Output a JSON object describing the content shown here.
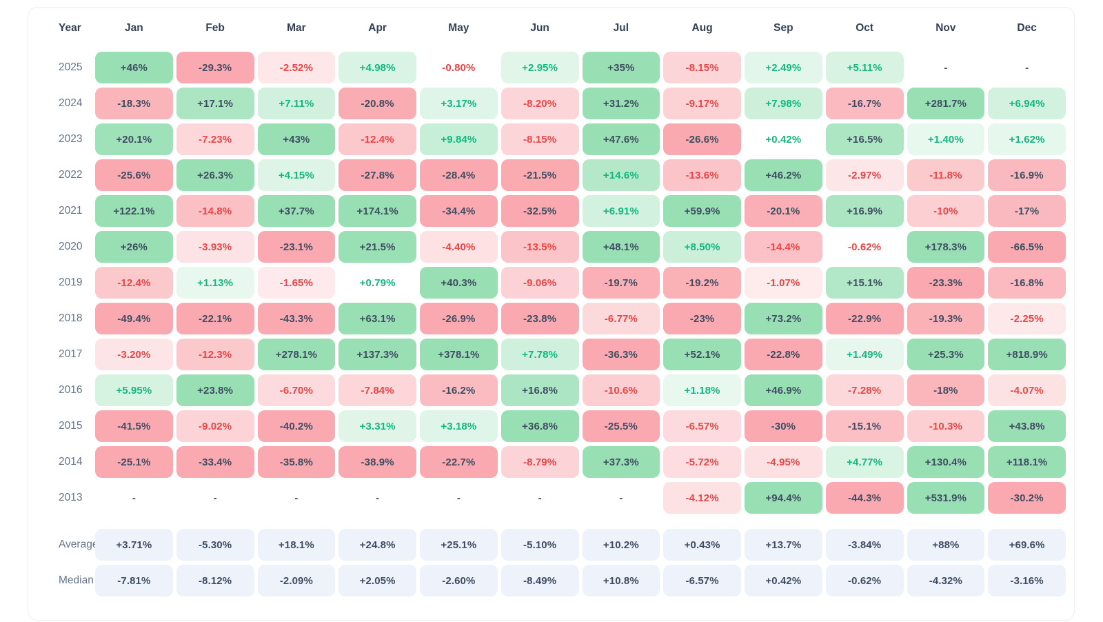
{
  "chart_data": {
    "type": "heatmap",
    "description": "Monthly percentage returns by year with average and median summary rows",
    "columns": [
      "Year",
      "Jan",
      "Feb",
      "Mar",
      "Apr",
      "May",
      "Jun",
      "Jul",
      "Aug",
      "Sep",
      "Oct",
      "Nov",
      "Dec"
    ],
    "empty_placeholder": "-",
    "rows": [
      {
        "label": "2025",
        "values": [
          "+46%",
          "-29.3%",
          "-2.52%",
          "+4.98%",
          "-0.80%",
          "+2.95%",
          "+35%",
          "-8.15%",
          "+2.49%",
          "+5.11%",
          "-",
          "-"
        ]
      },
      {
        "label": "2024",
        "values": [
          "-18.3%",
          "+17.1%",
          "+7.11%",
          "-20.8%",
          "+3.17%",
          "-8.20%",
          "+31.2%",
          "-9.17%",
          "+7.98%",
          "-16.7%",
          "+281.7%",
          "+6.94%"
        ]
      },
      {
        "label": "2023",
        "values": [
          "+20.1%",
          "-7.23%",
          "+43%",
          "-12.4%",
          "+9.84%",
          "-8.15%",
          "+47.6%",
          "-26.6%",
          "+0.42%",
          "+16.5%",
          "+1.40%",
          "+1.62%"
        ]
      },
      {
        "label": "2022",
        "values": [
          "-25.6%",
          "+26.3%",
          "+4.15%",
          "-27.8%",
          "-28.4%",
          "-21.5%",
          "+14.6%",
          "-13.6%",
          "+46.2%",
          "-2.97%",
          "-11.8%",
          "-16.9%"
        ]
      },
      {
        "label": "2021",
        "values": [
          "+122.1%",
          "-14.8%",
          "+37.7%",
          "+174.1%",
          "-34.4%",
          "-32.5%",
          "+6.91%",
          "+59.9%",
          "-20.1%",
          "+16.9%",
          "-10%",
          "-17%"
        ]
      },
      {
        "label": "2020",
        "values": [
          "+26%",
          "-3.93%",
          "-23.1%",
          "+21.5%",
          "-4.40%",
          "-13.5%",
          "+48.1%",
          "+8.50%",
          "-14.4%",
          "-0.62%",
          "+178.3%",
          "-66.5%"
        ]
      },
      {
        "label": "2019",
        "values": [
          "-12.4%",
          "+1.13%",
          "-1.65%",
          "+0.79%",
          "+40.3%",
          "-9.06%",
          "-19.7%",
          "-19.2%",
          "-1.07%",
          "+15.1%",
          "-23.3%",
          "-16.8%"
        ]
      },
      {
        "label": "2018",
        "values": [
          "-49.4%",
          "-22.1%",
          "-43.3%",
          "+63.1%",
          "-26.9%",
          "-23.8%",
          "-6.77%",
          "-23%",
          "+73.2%",
          "-22.9%",
          "-19.3%",
          "-2.25%"
        ]
      },
      {
        "label": "2017",
        "values": [
          "-3.20%",
          "-12.3%",
          "+278.1%",
          "+137.3%",
          "+378.1%",
          "+7.78%",
          "-36.3%",
          "+52.1%",
          "-22.8%",
          "+1.49%",
          "+25.3%",
          "+818.9%"
        ]
      },
      {
        "label": "2016",
        "values": [
          "+5.95%",
          "+23.8%",
          "-6.70%",
          "-7.84%",
          "-16.2%",
          "+16.8%",
          "-10.6%",
          "+1.18%",
          "+46.9%",
          "-7.28%",
          "-18%",
          "-4.07%"
        ]
      },
      {
        "label": "2015",
        "values": [
          "-41.5%",
          "-9.02%",
          "-40.2%",
          "+3.31%",
          "+3.18%",
          "+36.8%",
          "-25.5%",
          "-6.57%",
          "-30%",
          "-15.1%",
          "-10.3%",
          "+43.8%"
        ]
      },
      {
        "label": "2014",
        "values": [
          "-25.1%",
          "-33.4%",
          "-35.8%",
          "-38.9%",
          "-22.7%",
          "-8.79%",
          "+37.3%",
          "-5.72%",
          "-4.95%",
          "+4.77%",
          "+130.4%",
          "+118.1%"
        ]
      },
      {
        "label": "2013",
        "values": [
          "-",
          "-",
          "-",
          "-",
          "-",
          "-",
          "-",
          "-4.12%",
          "+94.4%",
          "-44.3%",
          "+531.9%",
          "-30.2%"
        ]
      }
    ],
    "summary_rows": [
      {
        "label": "Average",
        "values": [
          "+3.71%",
          "-5.30%",
          "+18.1%",
          "+24.8%",
          "+25.1%",
          "-5.10%",
          "+10.2%",
          "+0.43%",
          "+13.7%",
          "-3.84%",
          "+88%",
          "+69.6%"
        ]
      },
      {
        "label": "Median",
        "values": [
          "-7.81%",
          "-8.12%",
          "-2.09%",
          "+2.05%",
          "-2.60%",
          "-8.49%",
          "+10.8%",
          "-6.57%",
          "+0.42%",
          "-0.62%",
          "-4.32%",
          "-3.16%"
        ]
      }
    ],
    "layout": {
      "legend": "none",
      "grid": "off",
      "row_order": "newest year first, summary rows at bottom"
    }
  },
  "colors": {
    "positive_bg_max": "#98dfb4",
    "negative_bg_max": "#f9a9af",
    "positive_text": "#10b981",
    "negative_text": "#ef4444",
    "dark_text": "#3f4d63",
    "header_text": "#334155",
    "row_label_text": "#64748b",
    "summary_bg": "#edf2fb",
    "summary_text": "#3f4d63",
    "card_border": "#e9edf2",
    "rules": {
      "colored_text_below_abs_pct": 15,
      "white_bg_below_abs_pct": 1,
      "bg_full_intensity_abs_pct": 22,
      "bg_min_intensity": 0.18
    }
  }
}
